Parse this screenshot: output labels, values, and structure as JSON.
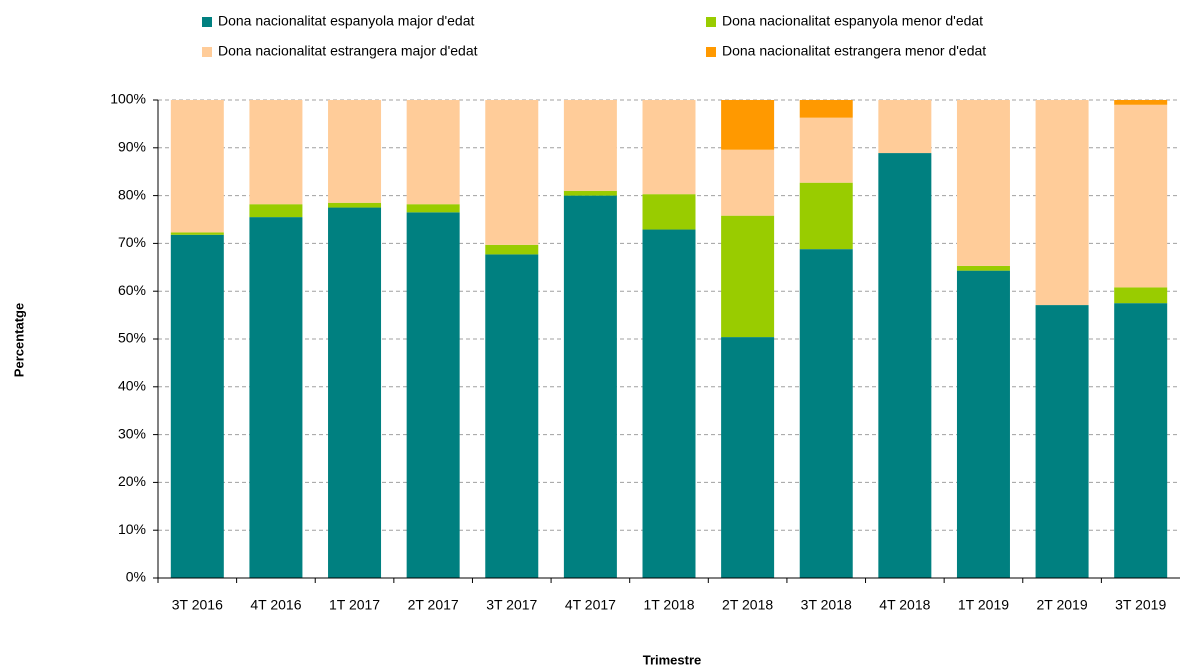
{
  "chart_data": {
    "type": "stacked_bar",
    "x_label": "Trimestre",
    "y_label": "Percentatge",
    "categories": [
      "3T 2016",
      "4T 2016",
      "1T 2017",
      "2T 2017",
      "3T 2017",
      "4T 2017",
      "1T 2018",
      "2T 2018",
      "3T 2018",
      "4T 2018",
      "1T 2019",
      "2T 2019",
      "3T 2019"
    ],
    "series": [
      {
        "name": "Dona nacionalitat espanyola major d'edat",
        "color": "#008080",
        "values": [
          71.8,
          75.5,
          77.5,
          76.5,
          67.7,
          80.0,
          72.9,
          50.4,
          68.8,
          88.9,
          64.3,
          57.1,
          57.5
        ]
      },
      {
        "name": "Dona nacionalitat espanyola menor d'edat",
        "color": "#99cc00",
        "values": [
          0.5,
          2.7,
          1.0,
          1.7,
          2.0,
          1.0,
          7.4,
          25.4,
          13.9,
          0,
          1.0,
          0,
          3.3
        ]
      },
      {
        "name": "Dona nacionalitat estrangera major d'edat",
        "color": "#ffcc99",
        "values": [
          27.7,
          21.8,
          21.5,
          21.8,
          30.3,
          19.0,
          19.7,
          13.8,
          13.6,
          11.1,
          34.7,
          42.9,
          38.2
        ]
      },
      {
        "name": "Dona nacionalitat estrangera menor d'edat",
        "color": "#ff9900",
        "values": [
          0,
          0,
          0,
          0,
          0,
          0,
          0,
          10.4,
          3.7,
          0,
          0,
          0,
          1.0
        ]
      }
    ],
    "ylim": [
      0,
      100
    ],
    "yticks": [
      {
        "value": 0,
        "label": "0%"
      },
      {
        "value": 10,
        "label": "10%"
      },
      {
        "value": 20,
        "label": "20%"
      },
      {
        "value": 30,
        "label": "30%"
      },
      {
        "value": 40,
        "label": "40%"
      },
      {
        "value": 50,
        "label": "50%"
      },
      {
        "value": 60,
        "label": "60%"
      },
      {
        "value": 70,
        "label": "70%"
      },
      {
        "value": 80,
        "label": "80%"
      },
      {
        "value": 90,
        "label": "90%"
      },
      {
        "value": 100,
        "label": "100%"
      }
    ],
    "grid": true,
    "legend": "top"
  }
}
